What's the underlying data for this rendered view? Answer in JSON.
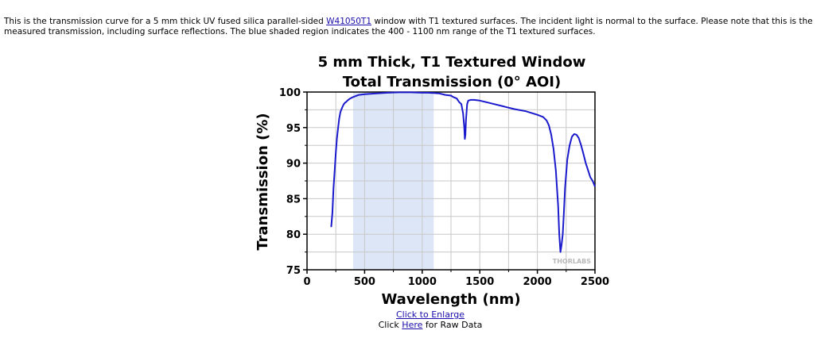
{
  "description": {
    "before": "This is the transmission curve for a 5 mm thick UV fused silica parallel-sided ",
    "link": "W41050T1",
    "after": " window with T1 textured surfaces. The incident light is normal to the surface. Please note that this is the measured transmission, including surface reflections. The blue shaded region indicates the 400 - 1100 nm range of the T1 textured surfaces."
  },
  "links": {
    "enlarge": "Click to Enlarge",
    "raw_prefix": "Click ",
    "raw_link": "Here",
    "raw_suffix": " for Raw Data"
  },
  "chart_data": {
    "type": "line",
    "title": [
      "5 mm Thick, T1 Textured Window",
      "Total Transmission (0° AOI)"
    ],
    "xlabel": "Wavelength (nm)",
    "ylabel": "Transmission (%)",
    "xlim": [
      0,
      2500
    ],
    "ylim": [
      75,
      100
    ],
    "xticks": [
      0,
      500,
      1000,
      1500,
      2000,
      2500
    ],
    "yticks": [
      75,
      80,
      85,
      90,
      95,
      100
    ],
    "grid": true,
    "watermark": "THORLABS",
    "colors": {
      "line": "#1a1acc",
      "shade": "#dde6f6",
      "grid": "#c8c8c8"
    },
    "shaded_region": [
      400,
      1100
    ],
    "series": [
      {
        "x": [
          210,
          220,
          230,
          240,
          250,
          260,
          270,
          280,
          290,
          300,
          310,
          320,
          330,
          340,
          350,
          375,
          400,
          450,
          500,
          600,
          700,
          800,
          900,
          1000,
          1050,
          1100,
          1150,
          1200,
          1250,
          1270,
          1300,
          1320,
          1340,
          1355,
          1365,
          1370,
          1375,
          1380,
          1390,
          1400,
          1420,
          1450,
          1500,
          1600,
          1700,
          1800,
          1900,
          2000,
          2050,
          2080,
          2100,
          2120,
          2140,
          2160,
          2180,
          2190,
          2200,
          2210,
          2220,
          2230,
          2240,
          2260,
          2280,
          2300,
          2320,
          2340,
          2360,
          2380,
          2400,
          2420,
          2440,
          2460,
          2480,
          2500
        ],
        "y": [
          81,
          83,
          86.5,
          89,
          91.5,
          93.5,
          95,
          96.3,
          97.2,
          97.6,
          98,
          98.3,
          98.5,
          98.6,
          98.8,
          99.1,
          99.3,
          99.6,
          99.7,
          99.8,
          99.9,
          99.95,
          99.95,
          99.9,
          99.9,
          99.85,
          99.8,
          99.6,
          99.5,
          99.3,
          99.1,
          98.6,
          98.3,
          97,
          95,
          93.4,
          94,
          96,
          98.3,
          98.8,
          98.9,
          98.9,
          98.8,
          98.4,
          98,
          97.6,
          97.3,
          96.8,
          96.5,
          96,
          95.3,
          94,
          92,
          89,
          84,
          80,
          77.5,
          78.5,
          80,
          83,
          86.5,
          90.5,
          92.5,
          93.7,
          94.1,
          94,
          93.5,
          92.5,
          91.3,
          90,
          89,
          88,
          87.5,
          86.7
        ]
      }
    ]
  }
}
